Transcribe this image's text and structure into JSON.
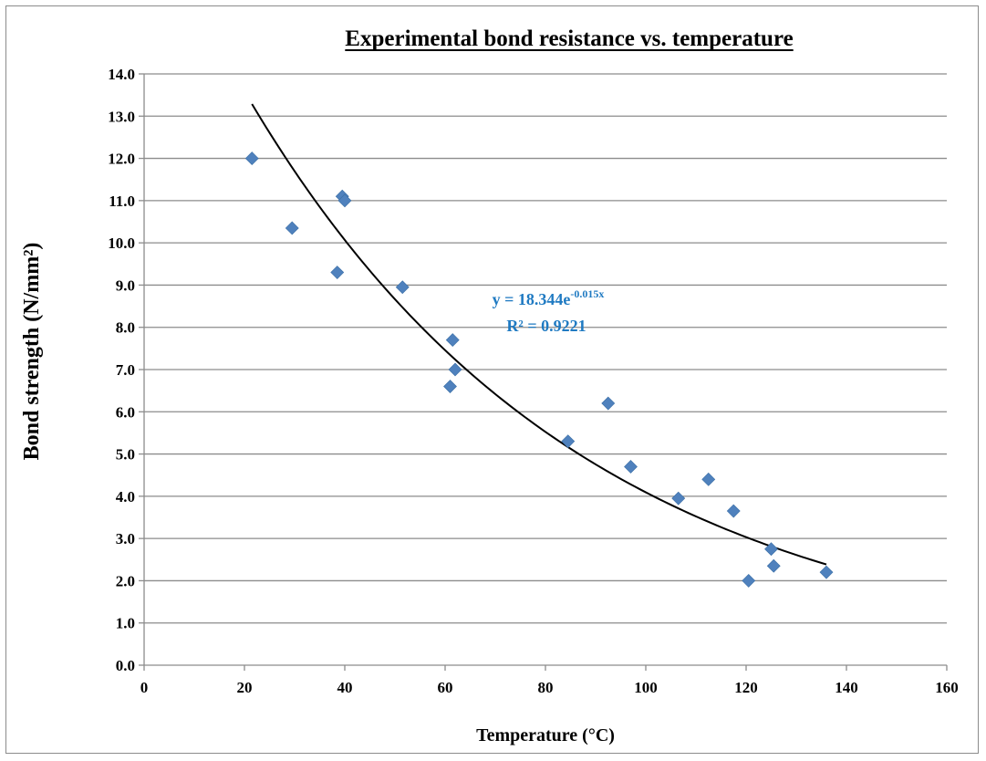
{
  "chart_data": {
    "type": "scatter",
    "title": "Experimental bond resistance vs. temperature",
    "xlabel": "Temperature (°C)",
    "ylabel": "Bond strength (N/mm²)",
    "xlim": [
      0,
      160
    ],
    "ylim": [
      0,
      14
    ],
    "x_ticks": [
      "0",
      "20",
      "40",
      "60",
      "80",
      "100",
      "120",
      "140",
      "160"
    ],
    "y_ticks": [
      "0.0",
      "1.0",
      "2.0",
      "3.0",
      "4.0",
      "5.0",
      "6.0",
      "7.0",
      "8.0",
      "9.0",
      "10.0",
      "11.0",
      "12.0",
      "13.0",
      "14.0"
    ],
    "grid": "horizontal",
    "legend": "none",
    "series": [
      {
        "marker": "diamond",
        "color": "#4f81bd",
        "points": [
          {
            "x": 21.5,
            "y": 12.0
          },
          {
            "x": 29.5,
            "y": 10.35
          },
          {
            "x": 38.5,
            "y": 9.3
          },
          {
            "x": 39.5,
            "y": 11.1
          },
          {
            "x": 40.0,
            "y": 11.0
          },
          {
            "x": 51.5,
            "y": 8.95
          },
          {
            "x": 61.0,
            "y": 6.6
          },
          {
            "x": 61.5,
            "y": 7.7
          },
          {
            "x": 62.0,
            "y": 7.0
          },
          {
            "x": 84.5,
            "y": 5.3
          },
          {
            "x": 92.5,
            "y": 6.2
          },
          {
            "x": 97.0,
            "y": 4.7
          },
          {
            "x": 106.5,
            "y": 3.95
          },
          {
            "x": 112.5,
            "y": 4.4
          },
          {
            "x": 117.5,
            "y": 3.65
          },
          {
            "x": 120.5,
            "y": 2.0
          },
          {
            "x": 125.0,
            "y": 2.75
          },
          {
            "x": 125.5,
            "y": 2.35
          },
          {
            "x": 136.0,
            "y": 2.2
          }
        ]
      }
    ],
    "trendline": {
      "type": "exponential",
      "a": 18.344,
      "b": -0.015,
      "x_range": [
        21.5,
        136.0
      ],
      "color": "#000000",
      "equation_prefix": "y = 18.344e",
      "equation_exponent": "-0.015x",
      "r_squared_label": "R² = 0.9221",
      "label_color": "#1f7ac2"
    }
  }
}
